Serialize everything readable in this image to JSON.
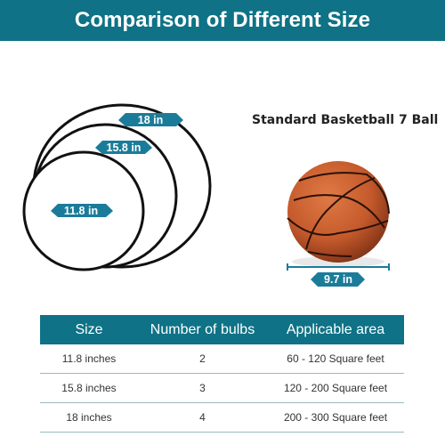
{
  "title": "Comparison of Different Size",
  "circles": [
    {
      "label": "18 in"
    },
    {
      "label": "15.8 in"
    },
    {
      "label": "11.8 in"
    }
  ],
  "ball": {
    "title": "Standard Basketball 7 Ball",
    "size_label": "9.7 in"
  },
  "colors": {
    "banner": "#0f7286",
    "label_tag": "#1b7c9a",
    "ball": "#c55a2c"
  },
  "table": {
    "headers": [
      "Size",
      "Number of bulbs",
      "Applicable area"
    ],
    "rows": [
      [
        "11.8 inches",
        "2",
        "60 - 120 Square feet"
      ],
      [
        "15.8 inches",
        "3",
        "120 - 200 Square feet"
      ],
      [
        "18 inches",
        "4",
        "200 - 300 Square feet"
      ]
    ]
  }
}
